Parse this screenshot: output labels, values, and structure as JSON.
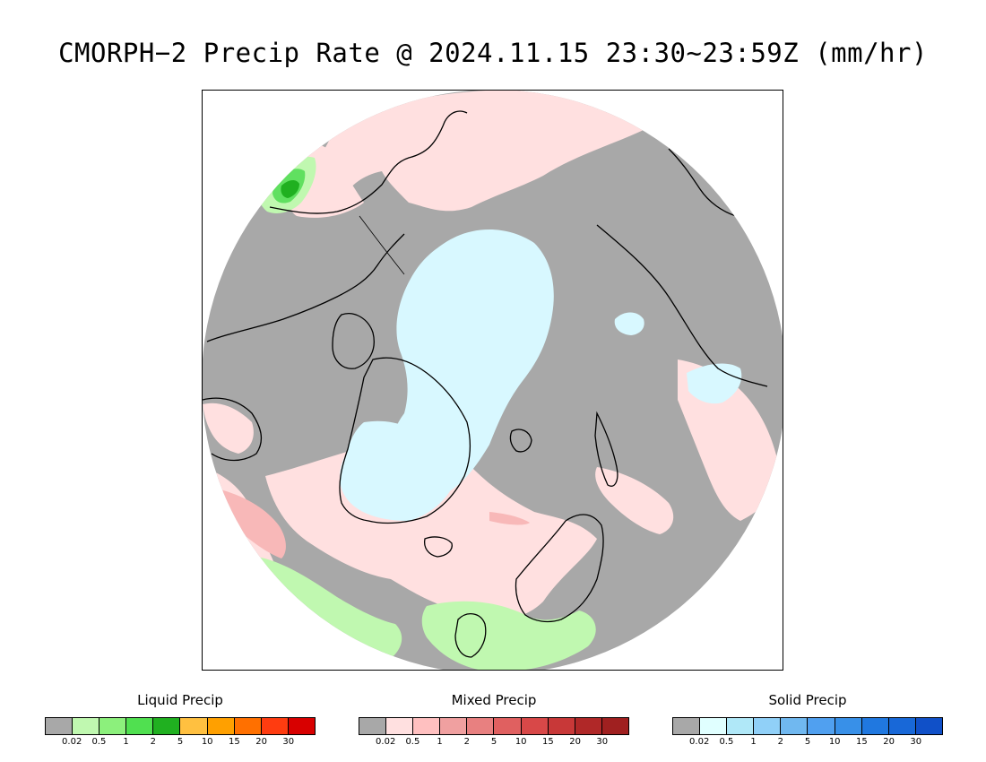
{
  "title": "CMORPH−2 Precip Rate @ 2024.11.15 23:30~23:59Z (mm/hr)",
  "map": {
    "projection": "north-polar-stereographic",
    "colors": {
      "no_precip_gray": "#a8a8a8",
      "mixed_light": "#ffe0e0",
      "mixed_mid": "#f8b8b8",
      "solid_light": "#d8f8ff",
      "liquid_light": "#c0f8b0",
      "liquid_mid": "#60e060",
      "liquid_dark": "#20b020",
      "coastline": "#000000"
    }
  },
  "legends": [
    {
      "title": "Liquid Precip",
      "colors": [
        "#a8a8a8",
        "#c0f8b0",
        "#8cf07c",
        "#50e050",
        "#20b020",
        "#ffc040",
        "#ffa000",
        "#ff7000",
        "#ff3c10",
        "#d80000"
      ],
      "ticks": [
        "0.02",
        "0.5",
        "1",
        "2",
        "5",
        "10",
        "15",
        "20",
        "30"
      ]
    },
    {
      "title": "Mixed Precip",
      "colors": [
        "#a8a8a8",
        "#ffe0e0",
        "#ffc0c0",
        "#f0a0a0",
        "#e88080",
        "#e06060",
        "#d84848",
        "#c83838",
        "#b02828",
        "#a02020"
      ],
      "ticks": [
        "0.02",
        "0.5",
        "1",
        "2",
        "5",
        "10",
        "15",
        "20",
        "30"
      ]
    },
    {
      "title": "Solid Precip",
      "colors": [
        "#a8a8a8",
        "#e0ffff",
        "#b0e8f8",
        "#90d0f8",
        "#70b8f0",
        "#50a0f0",
        "#3890e8",
        "#2078e0",
        "#1868d8",
        "#1050c8"
      ],
      "ticks": [
        "0.02",
        "0.5",
        "1",
        "2",
        "5",
        "10",
        "15",
        "20",
        "30"
      ]
    }
  ]
}
